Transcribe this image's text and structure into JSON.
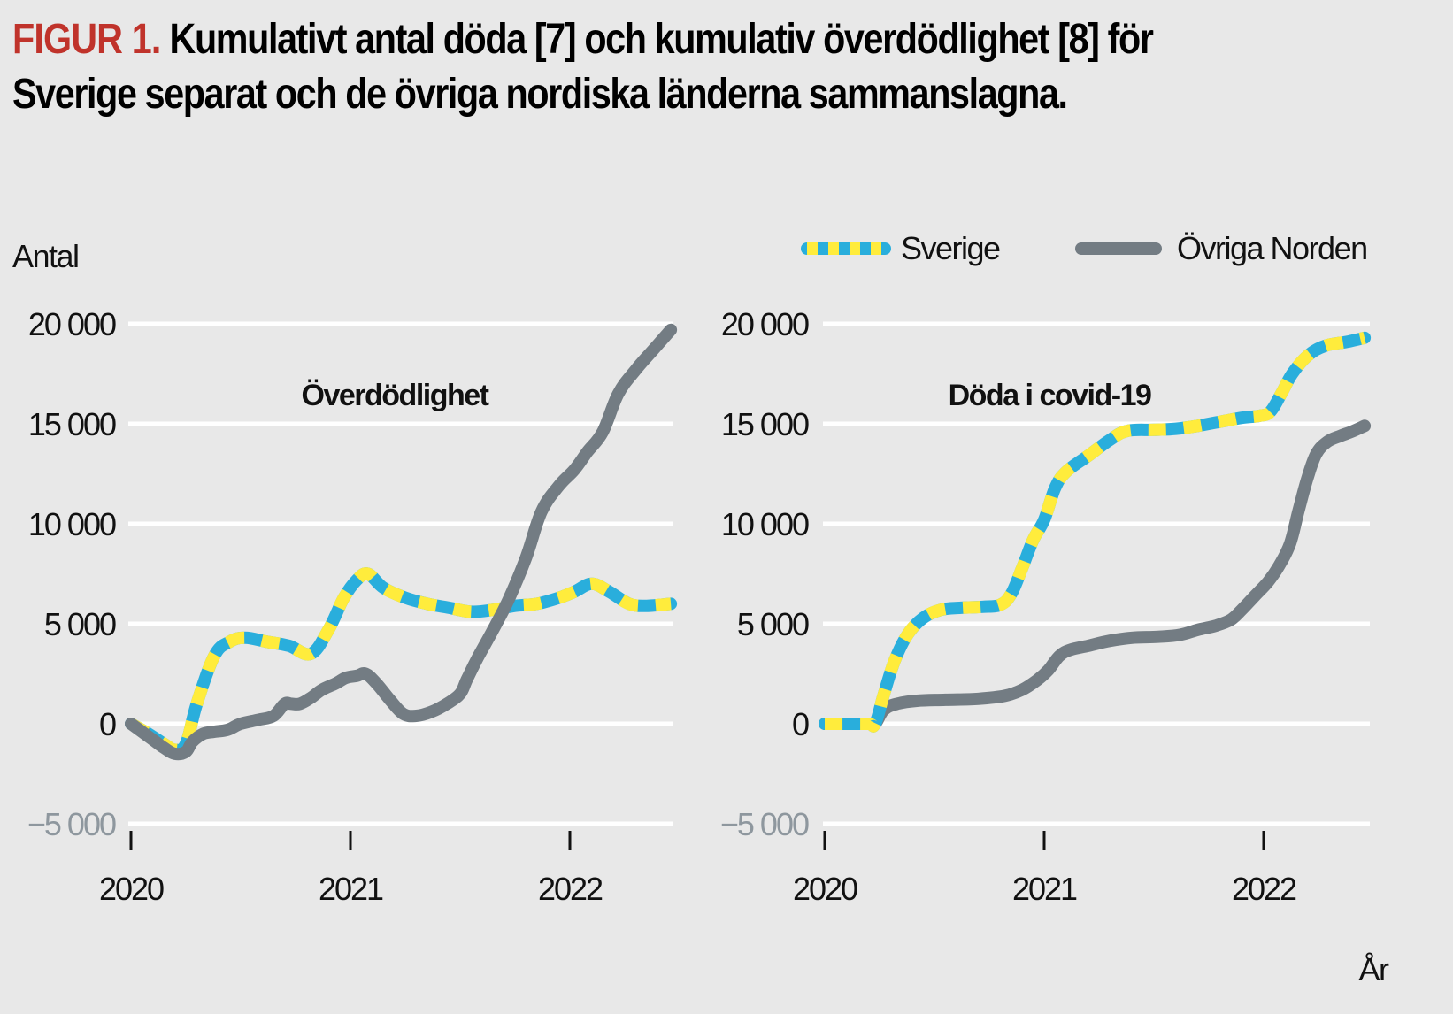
{
  "figure": {
    "label": "FIGUR 1.",
    "title": "Kumulativt antal döda [7] och kumulativ överdödlighet [8] för Sverige separat och de övriga nordiska länderna sammanslagna."
  },
  "colors": {
    "background": "#e8e8e8",
    "gridline": "#ffffff",
    "sverige_blue": "#29aedc",
    "sverige_yellow": "#ffec3c",
    "ovriga_gray": "#737c83",
    "figure_label_red": "#c0332b",
    "negative_tick": "#8e979e"
  },
  "legend": {
    "items": [
      {
        "label": "Sverige",
        "style": "dashed-blue-yellow"
      },
      {
        "label": "Övriga Norden",
        "style": "solid-gray"
      }
    ]
  },
  "chart_data": [
    {
      "type": "line",
      "title": "Överdödlighet",
      "ylabel": "Antal",
      "xlabel": "",
      "xlim": [
        2020,
        2022.47
      ],
      "ylim": [
        -5000,
        20000
      ],
      "grid": true,
      "x_ticks": [
        2020,
        2021,
        2022
      ],
      "x_tick_labels": [
        "2020",
        "2021",
        "2022"
      ],
      "y_ticks": [
        -5000,
        0,
        5000,
        10000,
        15000,
        20000
      ],
      "y_tick_labels": [
        "−5 000",
        "0",
        "5 000",
        "10 000",
        "15 000",
        "20 000"
      ],
      "legend_position": "top-right",
      "series": [
        {
          "name": "Sverige",
          "x": [
            2020.0,
            2020.08,
            2020.15,
            2020.2,
            2020.25,
            2020.3,
            2020.38,
            2020.45,
            2020.52,
            2020.62,
            2020.72,
            2020.82,
            2020.9,
            2020.97,
            2021.03,
            2021.08,
            2021.15,
            2021.25,
            2021.35,
            2021.45,
            2021.55,
            2021.65,
            2021.75,
            2021.85,
            2021.95,
            2022.02,
            2022.1,
            2022.18,
            2022.27,
            2022.35,
            2022.46
          ],
          "y": [
            0,
            -500,
            -1000,
            -1300,
            -1000,
            1000,
            3400,
            4100,
            4300,
            4100,
            3900,
            3500,
            4700,
            6300,
            7200,
            7500,
            6800,
            6300,
            6000,
            5800,
            5600,
            5700,
            5900,
            6000,
            6300,
            6600,
            7000,
            6600,
            6000,
            5900,
            6000
          ]
        },
        {
          "name": "Övriga Norden",
          "x": [
            2020.0,
            2020.05,
            2020.1,
            2020.15,
            2020.2,
            2020.25,
            2020.28,
            2020.33,
            2020.38,
            2020.44,
            2020.5,
            2020.58,
            2020.65,
            2020.7,
            2020.73,
            2020.77,
            2020.82,
            2020.87,
            2020.93,
            2020.98,
            2021.03,
            2021.07,
            2021.12,
            2021.18,
            2021.24,
            2021.3,
            2021.37,
            2021.44,
            2021.5,
            2021.53,
            2021.58,
            2021.65,
            2021.72,
            2021.8,
            2021.87,
            2021.95,
            2022.02,
            2022.08,
            2022.15,
            2022.22,
            2022.3,
            2022.38,
            2022.46
          ],
          "y": [
            0,
            -400,
            -800,
            -1200,
            -1500,
            -1400,
            -900,
            -500,
            -400,
            -300,
            0,
            200,
            400,
            1000,
            1000,
            1000,
            1300,
            1700,
            2000,
            2300,
            2400,
            2500,
            2000,
            1200,
            500,
            400,
            600,
            1000,
            1500,
            2200,
            3300,
            4700,
            6200,
            8300,
            10600,
            11900,
            12700,
            13600,
            14600,
            16500,
            17700,
            18700,
            19700
          ]
        }
      ]
    },
    {
      "type": "line",
      "title": "Döda i covid-19",
      "ylabel": "Antal",
      "xlabel": "År",
      "xlim": [
        2020,
        2022.47
      ],
      "ylim": [
        -5000,
        20000
      ],
      "grid": true,
      "x_ticks": [
        2020,
        2021,
        2022
      ],
      "x_tick_labels": [
        "2020",
        "2021",
        "2022"
      ],
      "y_ticks": [
        -5000,
        0,
        5000,
        10000,
        15000,
        20000
      ],
      "y_tick_labels": [
        "−5 000",
        "0",
        "5 000",
        "10 000",
        "15 000",
        "20 000"
      ],
      "legend_position": "top-right",
      "series": [
        {
          "name": "Sverige",
          "x": [
            2020.0,
            2020.1,
            2020.2,
            2020.23,
            2020.27,
            2020.32,
            2020.38,
            2020.45,
            2020.53,
            2020.62,
            2020.72,
            2020.8,
            2020.85,
            2020.9,
            2020.95,
            2021.0,
            2021.05,
            2021.1,
            2021.2,
            2021.3,
            2021.38,
            2021.5,
            2021.6,
            2021.7,
            2021.8,
            2021.9,
            2021.98,
            2022.03,
            2022.08,
            2022.13,
            2022.2,
            2022.28,
            2022.38,
            2022.46
          ],
          "y": [
            0,
            0,
            0,
            0,
            1500,
            3200,
            4500,
            5300,
            5700,
            5800,
            5850,
            5950,
            6500,
            7800,
            9200,
            10200,
            11800,
            12600,
            13400,
            14200,
            14650,
            14700,
            14750,
            14900,
            15100,
            15300,
            15400,
            15600,
            16500,
            17500,
            18400,
            18900,
            19100,
            19300
          ]
        },
        {
          "name": "Övriga Norden",
          "x": [
            2020.0,
            2020.1,
            2020.2,
            2020.23,
            2020.27,
            2020.33,
            2020.42,
            2020.55,
            2020.7,
            2020.82,
            2020.9,
            2020.97,
            2021.02,
            2021.07,
            2021.12,
            2021.2,
            2021.3,
            2021.4,
            2021.52,
            2021.62,
            2021.7,
            2021.78,
            2021.85,
            2021.9,
            2021.96,
            2022.02,
            2022.07,
            2022.12,
            2022.16,
            2022.2,
            2022.24,
            2022.29,
            2022.35,
            2022.4,
            2022.46
          ],
          "y": [
            0,
            0,
            0,
            0,
            700,
            1000,
            1150,
            1200,
            1250,
            1400,
            1700,
            2200,
            2700,
            3400,
            3700,
            3900,
            4150,
            4300,
            4350,
            4450,
            4700,
            4900,
            5200,
            5700,
            6400,
            7100,
            7900,
            9000,
            10700,
            12300,
            13500,
            14100,
            14400,
            14600,
            14900
          ]
        }
      ]
    }
  ]
}
